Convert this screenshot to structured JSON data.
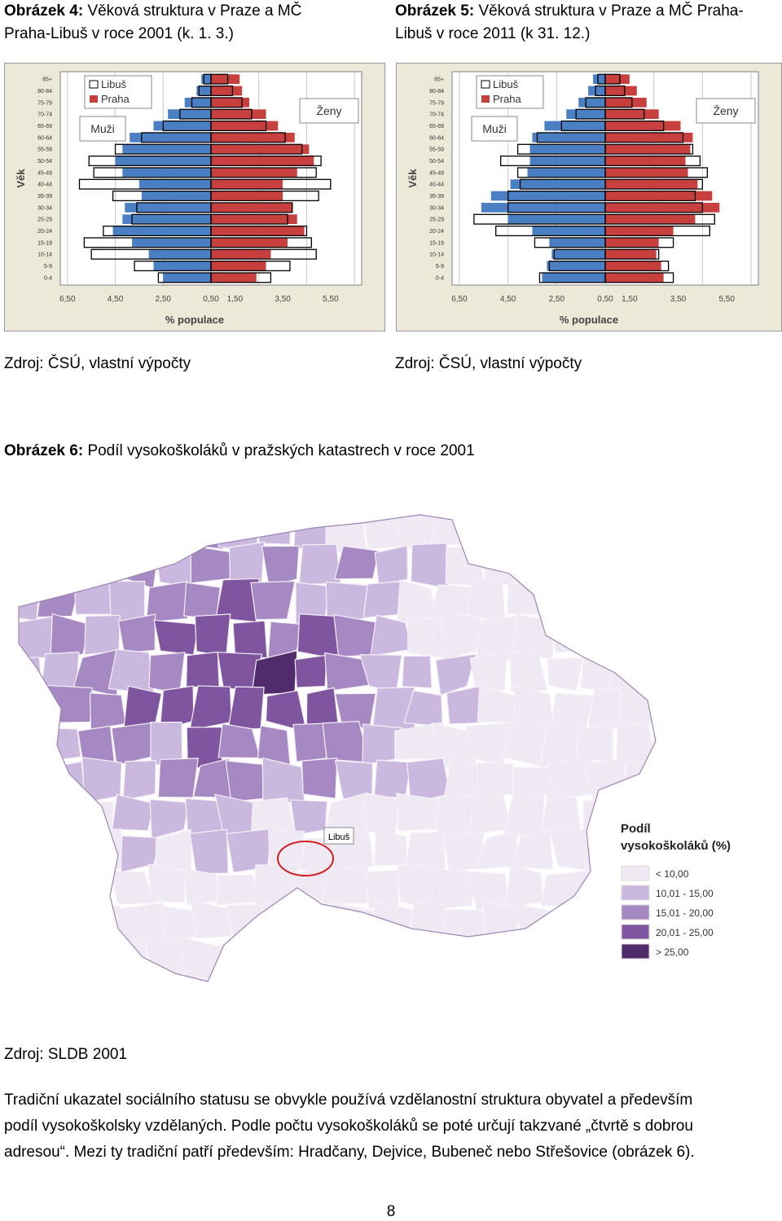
{
  "fig4": {
    "label": "Obrázek 4:",
    "title_line1": "Věková struktura v Praze a MČ",
    "title_line2": "Praha-Libuš v roce 2001 (k. 1. 3.)",
    "source": "Zdroj: ČSÚ, vlastní výpočty"
  },
  "fig5": {
    "label": "Obrázek 5:",
    "title_line1": "Věková struktura v Praze a MČ Praha-",
    "title_line2": "Libuš v roce 2011 (k 31. 12.)",
    "source": "Zdroj: ČSÚ, vlastní výpočty"
  },
  "fig6": {
    "label": "Obrázek 6:",
    "title": "Podíl vysokoškoláků v pražských katastrech v roce 2001",
    "source": "Zdroj: SLDB 2001",
    "map_marker_label": "Libuš",
    "legend_title_line1": "Podíl",
    "legend_title_line2": "vysokoškoláků (%)",
    "legend": [
      {
        "label": "< 10,00",
        "color": "#efe9f4"
      },
      {
        "label": "10,01 - 15,00",
        "color": "#cab8de"
      },
      {
        "label": "15,01 - 20,00",
        "color": "#a689c3"
      },
      {
        "label": "20,01 - 25,00",
        "color": "#7e559e"
      },
      {
        "label": "> 25,00",
        "color": "#512b6c"
      }
    ]
  },
  "colors": {
    "male": "#4a7fc4",
    "female": "#c8403e",
    "libus_outline": "#000000",
    "chart_bg": "#ece9d8"
  },
  "paragraph": {
    "line1": "Tradiční ukazatel sociálního statusu se obvykle používá vzdělanostní struktura obyvatel a především",
    "line2": "podíl vysokoškolsky vzdělaných. Podle počtu vysokoškoláků se poté určují takzvané „čtvrtě s dobrou",
    "line3": "adresou“. Mezi ty tradiční patří především: Hradčany, Dejvice, Bubeneč nebo Střešovice (obrázek 6)."
  },
  "page_number": "8",
  "chart_data": [
    {
      "type": "bar",
      "orientation": "horizontal-pyramid",
      "ylabel": "Věk",
      "xlabel": "% populace",
      "x_tick_labels": [
        "6,50",
        "4,50",
        "2,50",
        "0,50",
        "1,50",
        "3,50",
        "5,50"
      ],
      "categories": [
        "85+",
        "80-84",
        "75-79",
        "70-74",
        "65-69",
        "60-64",
        "55-59",
        "50-54",
        "45-49",
        "40-44",
        "35-39",
        "30-34",
        "25-29",
        "20-24",
        "15-19",
        "10-14",
        "5-9",
        "0-4"
      ],
      "legend": [
        "Libuš",
        "Praha"
      ],
      "group_labels": [
        "Muži",
        "Ženy"
      ],
      "series": [
        {
          "name": "Praha",
          "group": "Muži",
          "values": [
            0.4,
            0.6,
            1.1,
            1.8,
            2.4,
            3.4,
            3.7,
            4.0,
            3.7,
            3.0,
            2.9,
            3.6,
            3.7,
            4.1,
            3.3,
            2.6,
            2.4,
            2.0
          ]
        },
        {
          "name": "Praha",
          "group": "Ženy",
          "values": [
            1.2,
            1.3,
            1.6,
            2.3,
            2.8,
            3.5,
            4.1,
            4.3,
            3.6,
            3.0,
            3.0,
            3.4,
            3.6,
            3.9,
            3.2,
            2.5,
            2.3,
            1.9
          ]
        },
        {
          "name": "Libuš",
          "group": "Muži",
          "values": [
            0.3,
            0.5,
            0.8,
            1.3,
            2.0,
            2.9,
            4.0,
            5.1,
            4.9,
            5.5,
            4.1,
            3.1,
            3.3,
            4.5,
            5.3,
            5.0,
            3.2,
            2.2
          ]
        },
        {
          "name": "Libuš",
          "group": "Ženy",
          "values": [
            0.7,
            0.9,
            1.3,
            1.7,
            2.3,
            3.1,
            3.8,
            4.6,
            4.4,
            5.0,
            4.5,
            3.4,
            3.2,
            4.0,
            4.2,
            4.4,
            3.3,
            2.5
          ]
        }
      ]
    },
    {
      "type": "bar",
      "orientation": "horizontal-pyramid",
      "ylabel": "Věk",
      "xlabel": "% populace",
      "x_tick_labels": [
        "6,50",
        "4,50",
        "2,50",
        "0,50",
        "1,50",
        "3,50",
        "5,50"
      ],
      "categories": [
        "85+",
        "80-84",
        "75-79",
        "70-74",
        "65-69",
        "60-64",
        "55-59",
        "50-54",
        "45-49",
        "40-44",
        "35-39",
        "30-34",
        "25-29",
        "20-24",
        "15-19",
        "10-14",
        "5-9",
        "0-4"
      ],
      "legend": [
        "Libuš",
        "Praha"
      ],
      "group_labels": [
        "Muži",
        "Ženy"
      ],
      "series": [
        {
          "name": "Praha",
          "group": "Muži",
          "values": [
            0.5,
            0.7,
            1.1,
            1.6,
            2.5,
            3.0,
            3.1,
            3.1,
            3.2,
            3.9,
            4.7,
            5.1,
            4.0,
            3.0,
            2.3,
            2.2,
            2.4,
            2.6
          ]
        },
        {
          "name": "Praha",
          "group": "Ženy",
          "values": [
            1.0,
            1.3,
            1.7,
            2.2,
            3.1,
            3.6,
            3.5,
            3.3,
            3.4,
            3.8,
            4.4,
            4.7,
            3.7,
            2.8,
            2.2,
            2.1,
            2.3,
            2.4
          ]
        },
        {
          "name": "Libuš",
          "group": "Muži",
          "values": [
            0.3,
            0.4,
            0.8,
            1.2,
            1.8,
            2.8,
            3.6,
            4.3,
            3.6,
            3.5,
            4.0,
            4.0,
            5.4,
            4.5,
            2.9,
            2.1,
            2.3,
            2.7
          ]
        },
        {
          "name": "Libuš",
          "group": "Ženy",
          "values": [
            0.6,
            0.8,
            1.1,
            1.6,
            2.4,
            3.2,
            3.6,
            3.9,
            4.2,
            4.0,
            3.7,
            4.0,
            4.5,
            4.3,
            2.8,
            2.2,
            2.6,
            2.8
          ]
        }
      ]
    }
  ]
}
